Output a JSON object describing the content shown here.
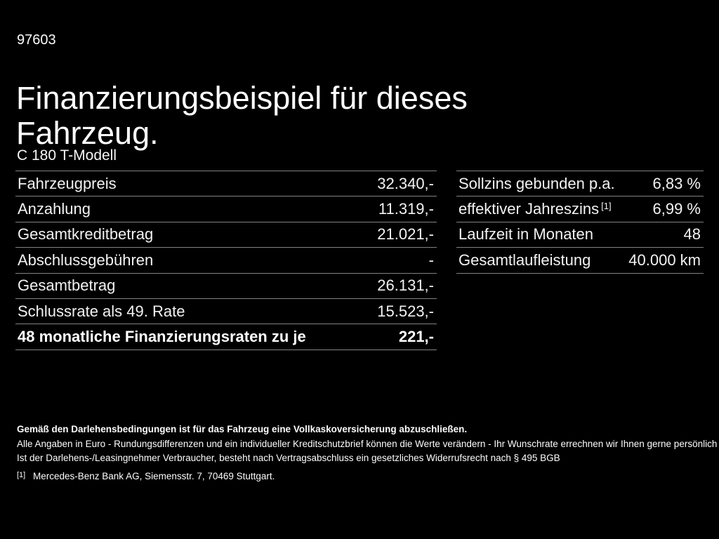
{
  "doc_number": "97603",
  "title": "Finanzierungsbeispiel für dieses Fahrzeug.",
  "subtitle": "C 180 T-Modell",
  "colors": {
    "background": "#000000",
    "text": "#ffffff",
    "divider": "#828282"
  },
  "tables": {
    "left": {
      "rows": [
        {
          "label": "Fahrzeugpreis",
          "value": "32.340,-"
        },
        {
          "label": "Anzahlung",
          "value": "11.319,-"
        },
        {
          "label": "Gesamtkreditbetrag",
          "value": "21.021,-"
        },
        {
          "label": "Abschlussgebühren",
          "value": "-"
        },
        {
          "label": "Gesamtbetrag",
          "value": "26.131,-"
        },
        {
          "label": "Schlussrate als 49. Rate",
          "value": "15.523,-"
        },
        {
          "label": "48 monatliche Finanzierungsraten zu je",
          "value": "221,-",
          "bold": true
        }
      ]
    },
    "right": {
      "rows": [
        {
          "label": "Sollzins gebunden p.a.",
          "value": "6,83 %"
        },
        {
          "label": "effektiver Jahreszins",
          "sup": "[1]",
          "value": "6,99 %"
        },
        {
          "label": "Laufzeit in Monaten",
          "value": "48"
        },
        {
          "label": "Gesamtlaufleistung",
          "value": "40.000 km"
        }
      ]
    }
  },
  "legal": {
    "bold_line": "Gemäß den Darlehensbedingungen ist für das Fahrzeug eine Vollkaskoversicherung abzuschließen.",
    "lines": [
      "Alle Angaben in Euro - Rundungsdifferenzen und ein individueller Kreditschutzbrief können die Werte verändern - Ihr Wunschrate errechnen wir Ihnen gerne persönlich",
      "Ist der Darlehens-/Leasingnehmer Verbraucher, besteht nach Vertragsabschluss ein gesetzliches Widerrufsrecht nach § 495 BGB"
    ],
    "footnote": {
      "marker": "[1]",
      "text": "Mercedes-Benz Bank AG, Siemensstr. 7, 70469 Stuttgart."
    }
  }
}
